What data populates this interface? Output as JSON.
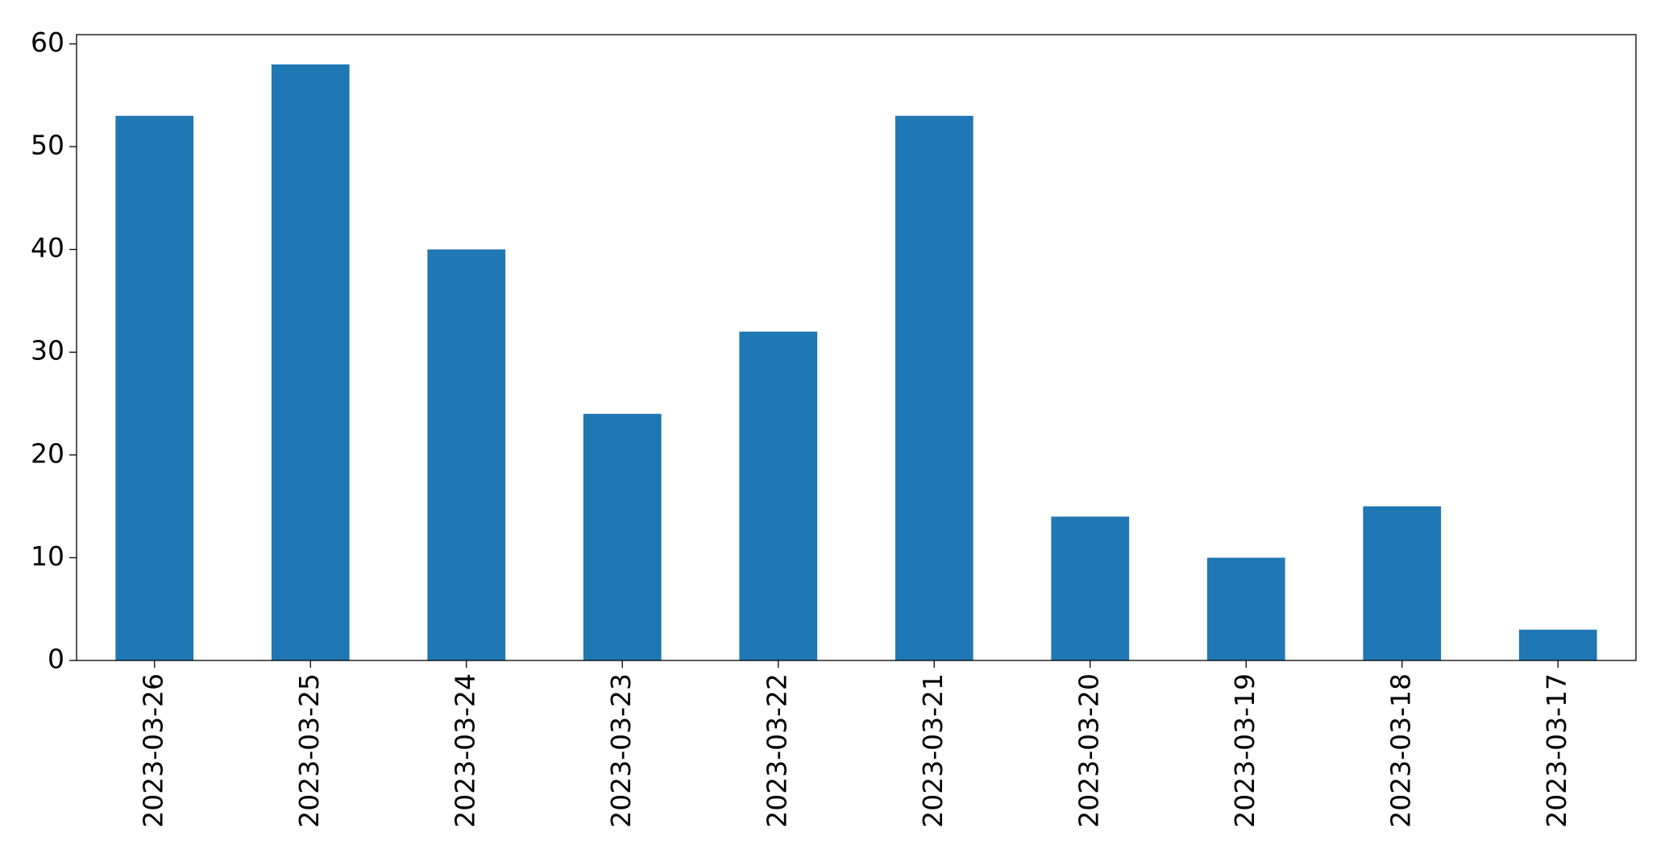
{
  "chart_data": {
    "type": "bar",
    "categories": [
      "2023-03-26",
      "2023-03-25",
      "2023-03-24",
      "2023-03-23",
      "2023-03-22",
      "2023-03-21",
      "2023-03-20",
      "2023-03-19",
      "2023-03-18",
      "2023-03-17"
    ],
    "values": [
      53,
      58,
      40,
      24,
      32,
      53,
      14,
      10,
      15,
      3
    ],
    "color": "#1f77b4",
    "ylim": [
      0,
      60.9
    ],
    "yticks": [
      0,
      10,
      20,
      30,
      40,
      50,
      60
    ],
    "grid": false
  }
}
